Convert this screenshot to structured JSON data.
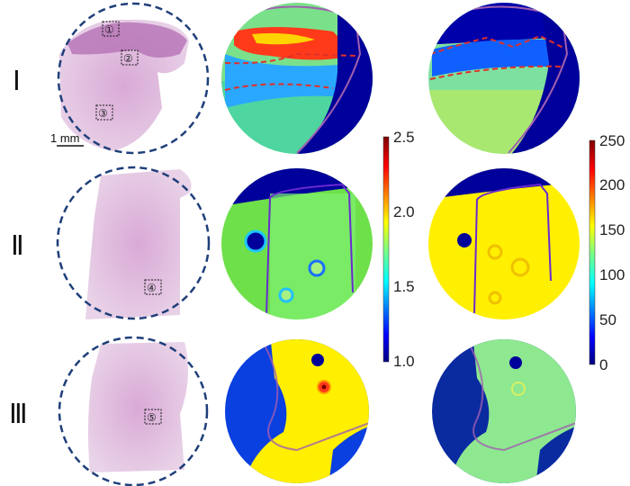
{
  "rows": [
    {
      "label": "Ⅰ",
      "markers": [
        "①",
        "②",
        "③"
      ],
      "scale_bar": "1 mm"
    },
    {
      "label": "Ⅱ",
      "markers": [
        "④"
      ]
    },
    {
      "label": "Ⅲ",
      "markers": [
        "⑤"
      ]
    }
  ],
  "colorbars": [
    {
      "ticks": [
        "2.5",
        "2.0",
        "1.5",
        "1.0"
      ],
      "min": 1.0,
      "max": 2.5,
      "colormap": "jet"
    },
    {
      "ticks": [
        "250",
        "200",
        "150",
        "100",
        "50",
        "0"
      ],
      "min": 0,
      "max": 250,
      "colormap": "jet"
    }
  ],
  "colors": {
    "circle_border": "#1f3f7a",
    "boundary_line": "#a05fb0",
    "dashed_line": "#e0302a",
    "tissue_stain": "#c98bc7"
  }
}
